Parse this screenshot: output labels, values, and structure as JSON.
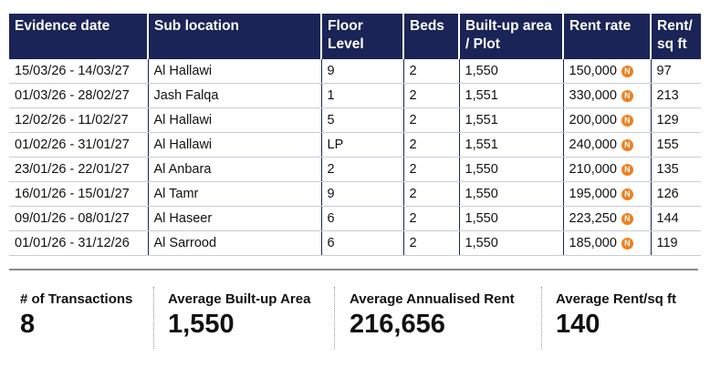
{
  "table": {
    "headers": [
      "Evidence date",
      "Sub location",
      "Floor Level",
      "Beds",
      "Built-up area / Plot",
      "Rent rate",
      "Rent/ sq ft"
    ],
    "rows": [
      [
        "15/03/26 - 14/03/27",
        "Al Hallawi",
        "9",
        "2",
        "1,550",
        "150,000",
        "97"
      ],
      [
        "01/03/26 - 28/02/27",
        "Jash Falqa",
        "1",
        "2",
        "1,551",
        "330,000",
        "213"
      ],
      [
        "12/02/26 - 11/02/27",
        "Al Hallawi",
        "5",
        "2",
        "1,551",
        "200,000",
        "129"
      ],
      [
        "01/02/26 - 31/01/27",
        "Al Hallawi",
        "LP",
        "2",
        "1,551",
        "240,000",
        "155"
      ],
      [
        "23/01/26 - 22/01/27",
        "Al Anbara",
        "2",
        "2",
        "1,550",
        "210,000",
        "135"
      ],
      [
        "16/01/26 - 15/01/27",
        "Al Tamr",
        "9",
        "2",
        "1,550",
        "195,000",
        "126"
      ],
      [
        "09/01/26 - 08/01/27",
        "Al Haseer",
        "6",
        "2",
        "1,550",
        "223,250",
        "144"
      ],
      [
        "01/01/26 - 31/12/26",
        "Al Sarrood",
        "6",
        "2",
        "1,550",
        "185,000",
        "119"
      ]
    ],
    "currency_icon": "currency-coin-icon",
    "currency_glyph": "N"
  },
  "summary": [
    {
      "label": "# of Transactions",
      "value": "8"
    },
    {
      "label": "Average Built-up Area",
      "value": "1,550"
    },
    {
      "label": "Average Annualised Rent",
      "value": "216,656"
    },
    {
      "label": "Average Rent/sq ft",
      "value": "140"
    }
  ],
  "colors": {
    "header_bg": "#1a2456",
    "currency_icon": "#f07f1e"
  }
}
